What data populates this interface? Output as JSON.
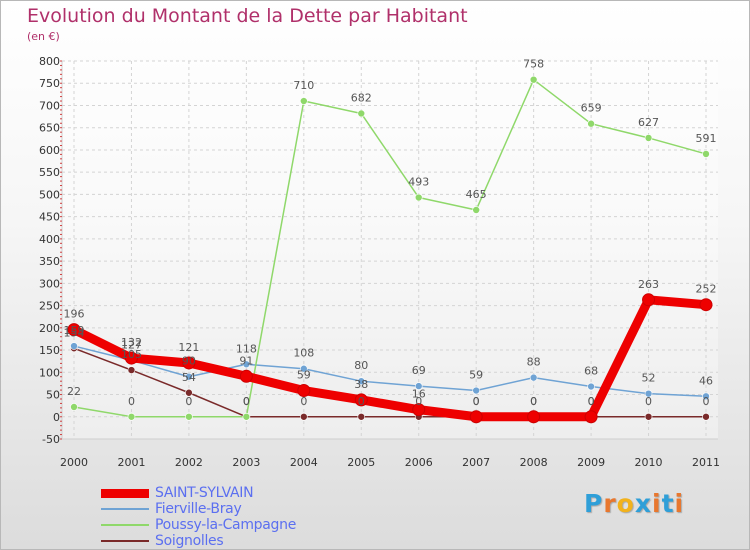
{
  "title": "Evolution du Montant de la Dette par Habitant",
  "subtitle": "(en €)",
  "logo": {
    "text": "Proxiti",
    "letter_colors": [
      "#2f9fd8",
      "#e8772e",
      "#f2b21c",
      "#2f9fd8",
      "#e8772e",
      "#2f9fd8",
      "#e8772e"
    ]
  },
  "chart_data": {
    "type": "line",
    "title": "Evolution du Montant de la Dette par Habitant",
    "ylabel": "(en €)",
    "xlabel": "",
    "x": [
      "2000",
      "2001",
      "2002",
      "2003",
      "2004",
      "2005",
      "2006",
      "2007",
      "2008",
      "2009",
      "2010",
      "2011"
    ],
    "yticks": [
      "-50",
      "0",
      "50",
      "100",
      "150",
      "200",
      "250",
      "300",
      "350",
      "400",
      "450",
      "500",
      "550",
      "600",
      "650",
      "700",
      "750",
      "800"
    ],
    "ylim": [
      -50,
      800
    ],
    "grid": true,
    "legend": "bottom-left",
    "series": [
      {
        "name": "SAINT-SYLVAIN",
        "color": "#ee0000",
        "values": [
          196,
          132,
          121,
          91,
          59,
          38,
          16,
          0,
          0,
          0,
          263,
          252
        ],
        "labels": [
          "196",
          "132",
          "121",
          "91",
          "59",
          "38",
          "16",
          "0",
          "0",
          "0",
          "263",
          "252"
        ]
      },
      {
        "name": "Fierville-Bray",
        "color": "#6fa3d4",
        "values": [
          159,
          127,
          90,
          118,
          108,
          80,
          69,
          59,
          88,
          68,
          52,
          46
        ],
        "labels": [
          "159",
          "127",
          "90",
          "118",
          "108",
          "80",
          "69",
          "59",
          "88",
          "68",
          "52",
          "46"
        ]
      },
      {
        "name": "Poussy-la-Campagne",
        "color": "#8fd86a",
        "values": [
          22,
          0,
          0,
          0,
          710,
          682,
          493,
          465,
          758,
          659,
          627,
          591
        ],
        "labels": [
          "22",
          "0",
          "0",
          "0",
          "710",
          "682",
          "493",
          "465",
          "758",
          "659",
          "627",
          "591"
        ]
      },
      {
        "name": "Soignolles",
        "color": "#7a2a2a",
        "values": [
          154,
          105,
          54,
          0,
          0,
          0,
          0,
          0,
          0,
          0,
          0,
          0
        ],
        "labels": [
          "154",
          "105",
          "54",
          "0",
          "0",
          "0",
          "0",
          "0",
          "0",
          "0",
          "0",
          "0"
        ]
      }
    ]
  }
}
